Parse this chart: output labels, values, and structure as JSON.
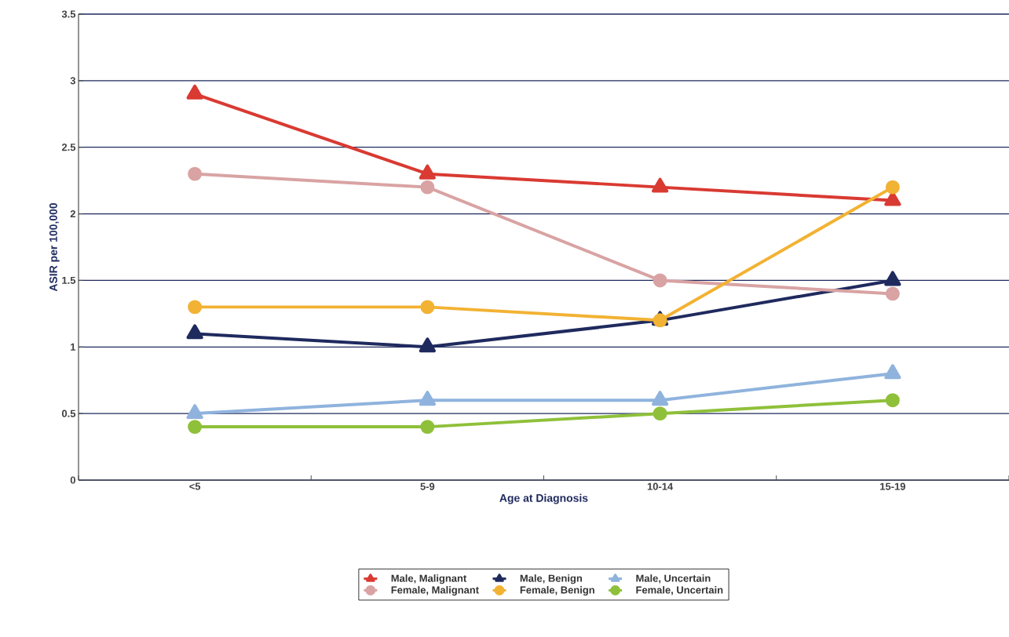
{
  "chart_data": {
    "type": "line",
    "xlabel": "Age at Diagnosis",
    "ylabel": "ASIR per 100,000",
    "categories": [
      "<5",
      "5-9",
      "10-14",
      "15-19"
    ],
    "ylim": [
      0,
      3.5
    ],
    "yticks": [
      0,
      0.5,
      1,
      1.5,
      2,
      2.5,
      3,
      3.5
    ],
    "grid": "y",
    "legend": "bottom",
    "series": [
      {
        "name": "Male, Malignant",
        "color": "#d93a32",
        "marker": "triangle",
        "values": [
          2.9,
          2.3,
          2.2,
          2.1
        ]
      },
      {
        "name": "Male, Benign",
        "color": "#1f2a5e",
        "marker": "triangle",
        "values": [
          1.1,
          1.0,
          1.2,
          1.5
        ]
      },
      {
        "name": "Male, Uncertain",
        "color": "#8fb3dd",
        "marker": "triangle",
        "values": [
          0.5,
          0.6,
          0.6,
          0.8
        ]
      },
      {
        "name": "Female, Malignant",
        "color": "#d9a3a3",
        "marker": "circle",
        "values": [
          2.3,
          2.2,
          1.5,
          1.4
        ]
      },
      {
        "name": "Female, Benign",
        "color": "#f2b233",
        "marker": "circle",
        "values": [
          1.3,
          1.3,
          1.2,
          2.2
        ]
      },
      {
        "name": "Female, Uncertain",
        "color": "#8fc03a",
        "marker": "circle",
        "values": [
          0.4,
          0.4,
          0.5,
          0.6
        ]
      }
    ]
  }
}
